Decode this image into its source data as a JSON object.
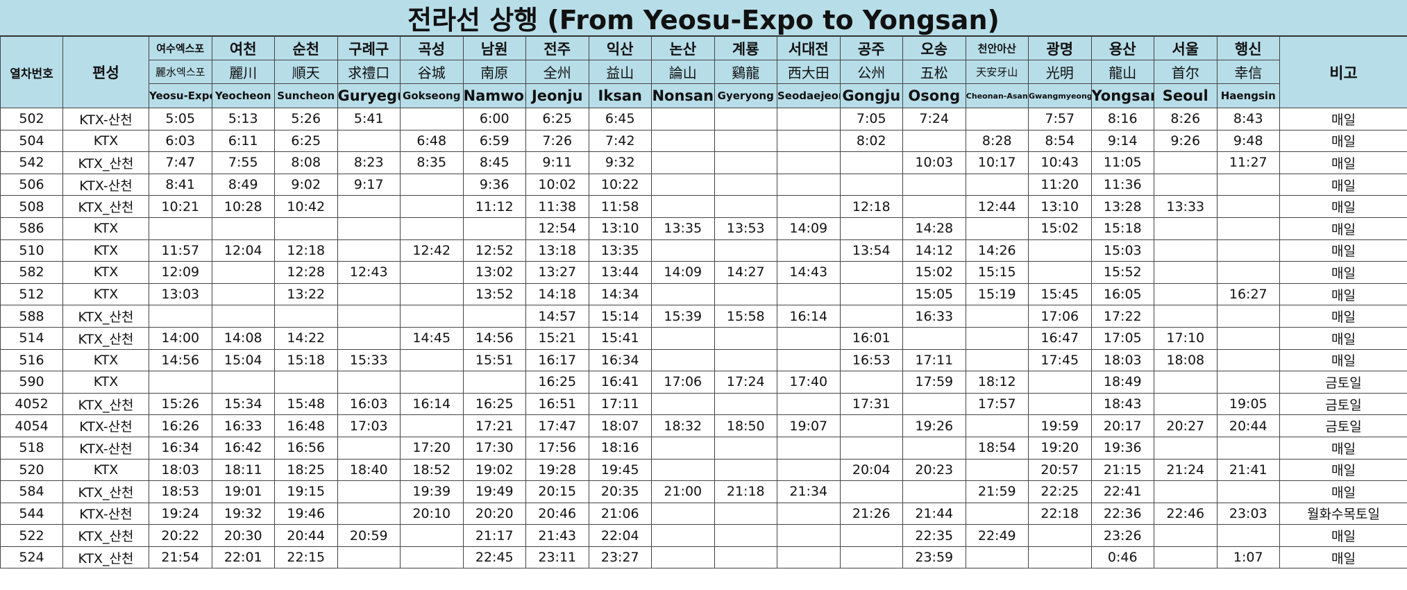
{
  "header": {
    "title": "전라선 상행 (From Yeosu-Expo to Yongsan)"
  },
  "table": {
    "columns": {
      "train_no": "열차번호",
      "formation": "편성",
      "note": "비고",
      "stations": [
        {
          "ko": "여수엑스포",
          "hanja": "麗水엑스포",
          "en": "Yeosu-Expo"
        },
        {
          "ko": "여천",
          "hanja": "麗川",
          "en": "Yeocheon"
        },
        {
          "ko": "순천",
          "hanja": "順天",
          "en": "Suncheon"
        },
        {
          "ko": "구례구",
          "hanja": "求禮口",
          "en": "Guryegu"
        },
        {
          "ko": "곡성",
          "hanja": "谷城",
          "en": "Gokseong"
        },
        {
          "ko": "남원",
          "hanja": "南原",
          "en": "Namwon"
        },
        {
          "ko": "전주",
          "hanja": "全州",
          "en": "Jeonju"
        },
        {
          "ko": "익산",
          "hanja": "益山",
          "en": "Iksan"
        },
        {
          "ko": "논산",
          "hanja": "論山",
          "en": "Nonsan"
        },
        {
          "ko": "계룡",
          "hanja": "鷄龍",
          "en": "Gyeryong"
        },
        {
          "ko": "서대전",
          "hanja": "西大田",
          "en": "Seodaejeon"
        },
        {
          "ko": "공주",
          "hanja": "公州",
          "en": "Gongju"
        },
        {
          "ko": "오송",
          "hanja": "五松",
          "en": "Osong"
        },
        {
          "ko": "천안아산",
          "hanja": "天安牙山",
          "en": "Cheonan-Asan"
        },
        {
          "ko": "광명",
          "hanja": "光明",
          "en": "Gwangmyeong"
        },
        {
          "ko": "용산",
          "hanja": "龍山",
          "en": "Yongsan"
        },
        {
          "ko": "서울",
          "hanja": "首尔",
          "en": "Seoul"
        },
        {
          "ko": "행신",
          "hanja": "幸信",
          "en": "Haengsin"
        }
      ]
    },
    "rows": [
      {
        "train": "502",
        "type": "KTX-산천",
        "times": [
          "5:05",
          "5:13",
          "5:26",
          "5:41",
          null,
          "6:00",
          "6:25",
          "6:45",
          null,
          null,
          null,
          "7:05",
          "7:24",
          null,
          "7:57",
          "8:16",
          "8:26",
          "8:43"
        ],
        "note": "매일"
      },
      {
        "train": "504",
        "type": "KTX",
        "times": [
          "6:03",
          "6:11",
          "6:25",
          null,
          "6:48",
          "6:59",
          "7:26",
          "7:42",
          null,
          null,
          null,
          "8:02",
          null,
          "8:28",
          "8:54",
          "9:14",
          "9:26",
          "9:48"
        ],
        "note": "매일"
      },
      {
        "train": "542",
        "type": "KTX_산천",
        "times": [
          "7:47",
          "7:55",
          "8:08",
          "8:23",
          "8:35",
          "8:45",
          "9:11",
          "9:32",
          null,
          null,
          null,
          null,
          "10:03",
          "10:17",
          "10:43",
          "11:05",
          null,
          "11:27"
        ],
        "note": "매일"
      },
      {
        "train": "506",
        "type": "KTX-산천",
        "times": [
          "8:41",
          "8:49",
          "9:02",
          "9:17",
          null,
          "9:36",
          "10:02",
          "10:22",
          null,
          null,
          null,
          null,
          null,
          null,
          "11:20",
          "11:36",
          null,
          null
        ],
        "note": "매일"
      },
      {
        "train": "508",
        "type": "KTX_산천",
        "times": [
          "10:21",
          "10:28",
          "10:42",
          null,
          null,
          "11:12",
          "11:38",
          "11:58",
          null,
          null,
          null,
          "12:18",
          null,
          "12:44",
          "13:10",
          "13:28",
          "13:33",
          null
        ],
        "note": "매일"
      },
      {
        "train": "586",
        "type": "KTX",
        "times": [
          null,
          null,
          null,
          null,
          null,
          null,
          "12:54",
          "13:10",
          "13:35",
          "13:53",
          "14:09",
          null,
          "14:28",
          null,
          "15:02",
          "15:18",
          null,
          null
        ],
        "note": "매일"
      },
      {
        "train": "510",
        "type": "KTX",
        "times": [
          "11:57",
          "12:04",
          "12:18",
          null,
          "12:42",
          "12:52",
          "13:18",
          "13:35",
          null,
          null,
          null,
          "13:54",
          "14:12",
          "14:26",
          null,
          "15:03",
          null,
          null
        ],
        "note": "매일"
      },
      {
        "train": "582",
        "type": "KTX",
        "times": [
          "12:09",
          null,
          "12:28",
          "12:43",
          null,
          "13:02",
          "13:27",
          "13:44",
          "14:09",
          "14:27",
          "14:43",
          null,
          "15:02",
          "15:15",
          null,
          "15:52",
          null,
          null
        ],
        "note": "매일"
      },
      {
        "train": "512",
        "type": "KTX",
        "times": [
          "13:03",
          null,
          "13:22",
          null,
          null,
          "13:52",
          "14:18",
          "14:34",
          null,
          null,
          null,
          null,
          "15:05",
          "15:19",
          "15:45",
          "16:05",
          null,
          "16:27"
        ],
        "note": "매일"
      },
      {
        "train": "588",
        "type": "KTX_산천",
        "times": [
          null,
          null,
          null,
          null,
          null,
          null,
          "14:57",
          "15:14",
          "15:39",
          "15:58",
          "16:14",
          null,
          "16:33",
          null,
          "17:06",
          "17:22",
          null,
          null
        ],
        "note": "매일"
      },
      {
        "train": "514",
        "type": "KTX_산천",
        "times": [
          "14:00",
          "14:08",
          "14:22",
          null,
          "14:45",
          "14:56",
          "15:21",
          "15:41",
          null,
          null,
          null,
          "16:01",
          null,
          null,
          "16:47",
          "17:05",
          "17:10",
          null
        ],
        "note": "매일"
      },
      {
        "train": "516",
        "type": "KTX",
        "times": [
          "14:56",
          "15:04",
          "15:18",
          "15:33",
          null,
          "15:51",
          "16:17",
          "16:34",
          null,
          null,
          null,
          "16:53",
          "17:11",
          null,
          "17:45",
          "18:03",
          "18:08",
          null
        ],
        "note": "매일"
      },
      {
        "train": "590",
        "type": "KTX",
        "times": [
          null,
          null,
          null,
          null,
          null,
          null,
          "16:25",
          "16:41",
          "17:06",
          "17:24",
          "17:40",
          null,
          "17:59",
          "18:12",
          null,
          "18:49",
          null,
          null
        ],
        "note": "금토일"
      },
      {
        "train": "4052",
        "type": "KTX_산천",
        "times": [
          "15:26",
          "15:34",
          "15:48",
          "16:03",
          "16:14",
          "16:25",
          "16:51",
          "17:11",
          null,
          null,
          null,
          "17:31",
          null,
          "17:57",
          null,
          "18:43",
          null,
          "19:05"
        ],
        "note": "금토일"
      },
      {
        "train": "4054",
        "type": "KTX-산천",
        "times": [
          "16:26",
          "16:33",
          "16:48",
          "17:03",
          null,
          "17:21",
          "17:47",
          "18:07",
          "18:32",
          "18:50",
          "19:07",
          null,
          "19:26",
          null,
          "19:59",
          "20:17",
          "20:27",
          "20:44"
        ],
        "note": "금토일"
      },
      {
        "train": "518",
        "type": "KTX-산천",
        "times": [
          "16:34",
          "16:42",
          "16:56",
          null,
          "17:20",
          "17:30",
          "17:56",
          "18:16",
          null,
          null,
          null,
          null,
          null,
          "18:54",
          "19:20",
          "19:36",
          null,
          null
        ],
        "note": "매일"
      },
      {
        "train": "520",
        "type": "KTX",
        "times": [
          "18:03",
          "18:11",
          "18:25",
          "18:40",
          "18:52",
          "19:02",
          "19:28",
          "19:45",
          null,
          null,
          null,
          "20:04",
          "20:23",
          null,
          "20:57",
          "21:15",
          "21:24",
          "21:41"
        ],
        "note": "매일"
      },
      {
        "train": "584",
        "type": "KTX_산천",
        "times": [
          "18:53",
          "19:01",
          "19:15",
          null,
          "19:39",
          "19:49",
          "20:15",
          "20:35",
          "21:00",
          "21:18",
          "21:34",
          null,
          null,
          "21:59",
          "22:25",
          "22:41",
          null,
          null
        ],
        "note": "매일"
      },
      {
        "train": "544",
        "type": "KTX-산천",
        "times": [
          "19:24",
          "19:32",
          "19:46",
          null,
          "20:10",
          "20:20",
          "20:46",
          "21:06",
          null,
          null,
          null,
          "21:26",
          "21:44",
          null,
          "22:18",
          "22:36",
          "22:46",
          "23:03"
        ],
        "note": "월화수목토일"
      },
      {
        "train": "522",
        "type": "KTX_산천",
        "times": [
          "20:22",
          "20:30",
          "20:44",
          "20:59",
          null,
          "21:17",
          "21:43",
          "22:04",
          null,
          null,
          null,
          null,
          "22:35",
          "22:49",
          null,
          "23:26",
          null,
          null
        ],
        "note": "매일"
      },
      {
        "train": "524",
        "type": "KTX_산천",
        "times": [
          "21:54",
          "22:01",
          "22:15",
          null,
          null,
          "22:45",
          "23:11",
          "23:27",
          null,
          null,
          null,
          null,
          "23:59",
          null,
          null,
          "0:46",
          null,
          "1:07"
        ],
        "note": "매일"
      }
    ]
  }
}
